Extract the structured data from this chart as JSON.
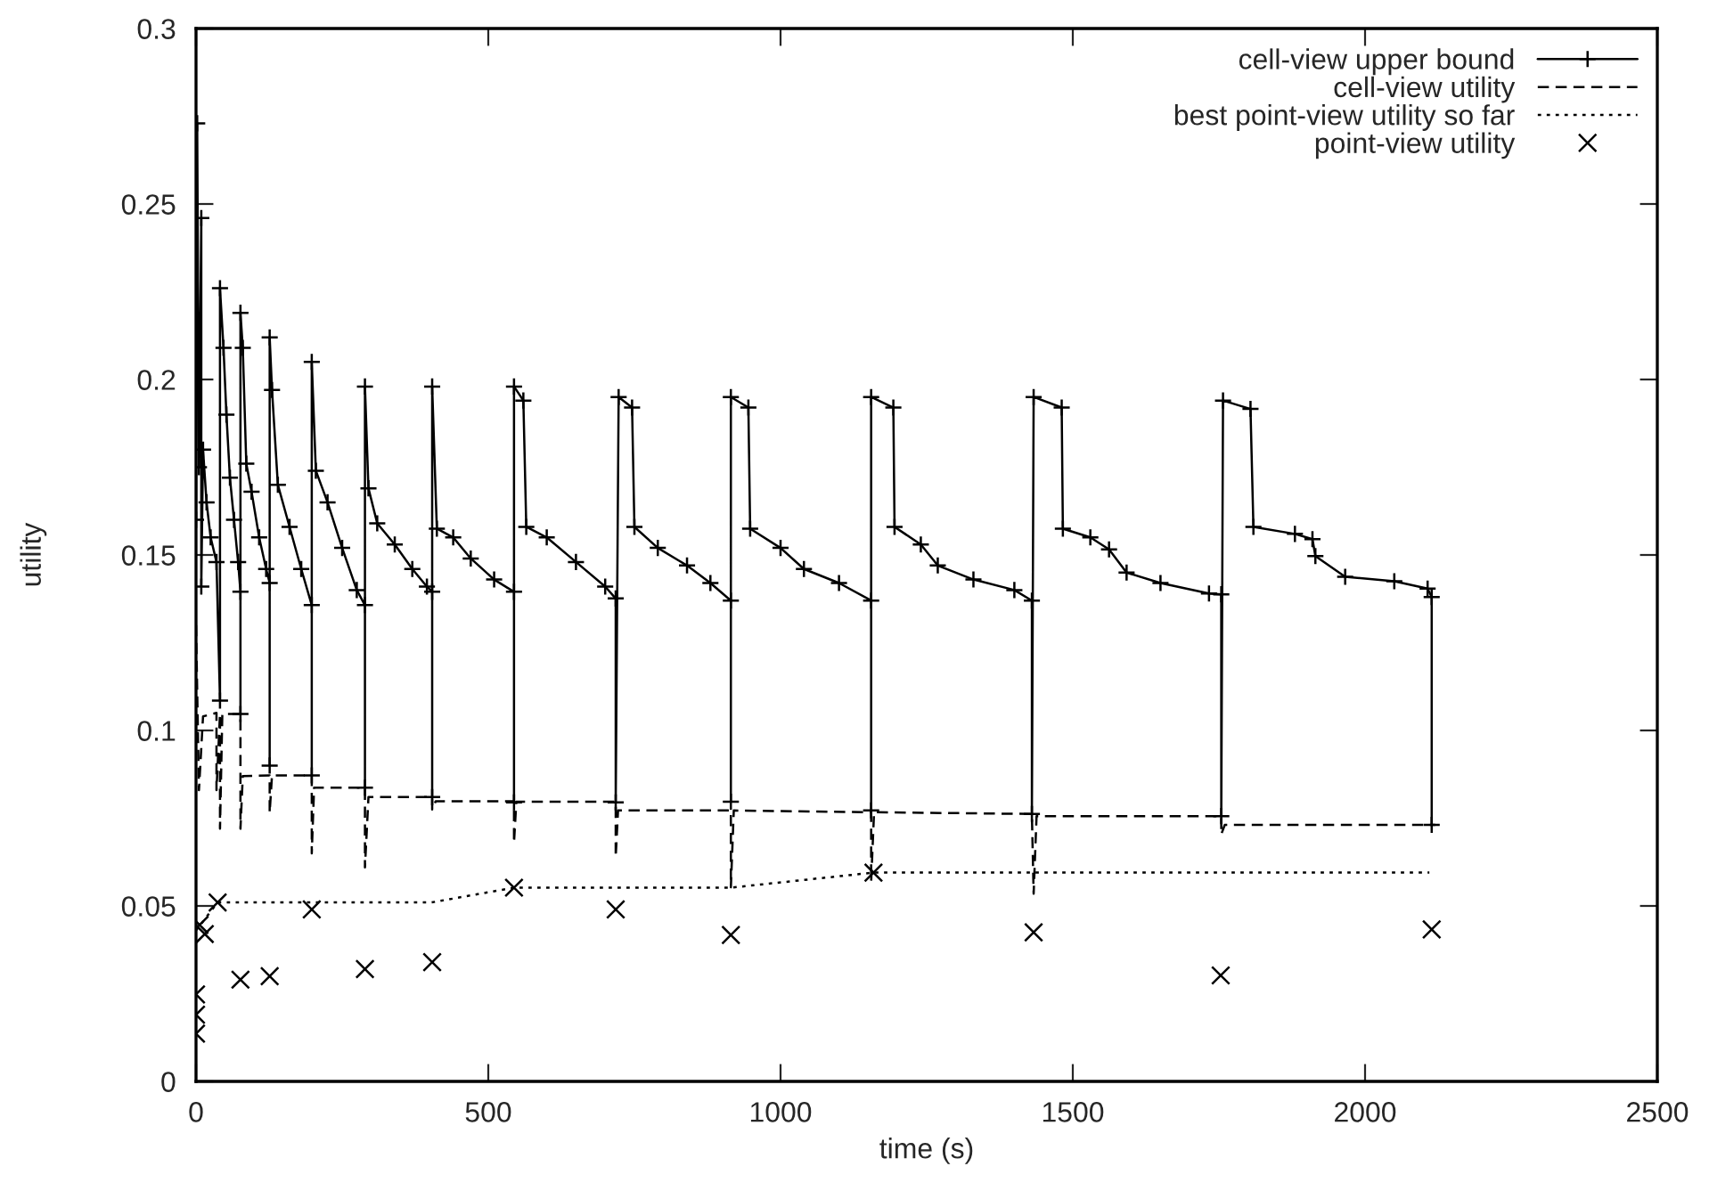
{
  "chart_data": {
    "type": "line",
    "xlabel": "time (s)",
    "ylabel": "utility",
    "xlim": [
      0,
      2500
    ],
    "ylim": [
      0,
      0.3
    ],
    "xticks": [
      0,
      500,
      1000,
      1500,
      2000,
      2500
    ],
    "yticks": [
      0,
      0.05,
      0.1,
      0.15,
      0.2,
      0.25,
      0.3
    ],
    "grid": false,
    "legend": "top right",
    "series": [
      {
        "name": "cell-view upper bound",
        "color": "#000000",
        "marker": "cross",
        "line_style": "solid",
        "x": [
          0,
          2,
          5,
          9,
          9,
          12,
          18,
          25,
          35,
          41,
          41,
          47,
          52,
          58,
          65,
          72,
          76,
          76,
          76,
          80,
          86,
          95,
          108,
          120,
          126,
          126,
          126,
          130,
          140,
          160,
          180,
          198,
          198,
          198,
          205,
          225,
          250,
          275,
          289,
          289,
          289,
          295,
          310,
          340,
          370,
          395,
          404,
          404,
          404,
          412,
          440,
          470,
          510,
          544,
          544,
          544,
          560,
          565,
          600,
          650,
          700,
          718,
          718,
          723,
          746,
          750,
          790,
          840,
          880,
          915,
          915,
          915,
          945,
          948,
          1000,
          1040,
          1100,
          1155,
          1155,
          1155,
          1193,
          1195,
          1240,
          1269,
          1330,
          1400,
          1430,
          1430,
          1433,
          1481,
          1483,
          1530,
          1562,
          1592,
          1650,
          1733,
          1754,
          1754,
          1757,
          1804,
          1809,
          1880,
          1910,
          1915,
          1966,
          2050,
          2107,
          2114,
          2114
        ],
        "values": [
          0.16,
          0.273,
          0.175,
          0.246,
          0.141,
          0.18,
          0.165,
          0.155,
          0.148,
          0.1085,
          0.226,
          0.209,
          0.19,
          0.172,
          0.16,
          0.148,
          0.1395,
          0.1047,
          0.219,
          0.209,
          0.176,
          0.168,
          0.155,
          0.146,
          0.142,
          0.09,
          0.212,
          0.197,
          0.17,
          0.158,
          0.146,
          0.1357,
          0.0872,
          0.205,
          0.174,
          0.165,
          0.152,
          0.14,
          0.1357,
          0.0837,
          0.198,
          0.169,
          0.159,
          0.153,
          0.146,
          0.141,
          0.1395,
          0.081,
          0.198,
          0.1575,
          0.155,
          0.149,
          0.143,
          0.1395,
          0.0795,
          0.198,
          0.194,
          0.158,
          0.155,
          0.148,
          0.141,
          0.1376,
          0.0795,
          0.195,
          0.192,
          0.158,
          0.152,
          0.147,
          0.142,
          0.137,
          0.0797,
          0.195,
          0.192,
          0.1575,
          0.152,
          0.146,
          0.142,
          0.137,
          0.0772,
          0.195,
          0.192,
          0.158,
          0.153,
          0.147,
          0.143,
          0.14,
          0.137,
          0.0762,
          0.195,
          0.192,
          0.1575,
          0.155,
          0.1516,
          0.145,
          0.142,
          0.139,
          0.1388,
          0.0756,
          0.194,
          0.1916,
          0.158,
          0.156,
          0.1545,
          0.1497,
          0.1438,
          0.1425,
          0.1404,
          0.138,
          0.0731
        ]
      },
      {
        "name": "cell-view utility",
        "color": "#000000",
        "marker": "none",
        "line_style": "dashed",
        "x": [
          0,
          5,
          12,
          35,
          35,
          41,
          41,
          45,
          76,
          76,
          80,
          126,
          126,
          130,
          198,
          198,
          202,
          289,
          289,
          295,
          404,
          404,
          410,
          544,
          544,
          548,
          718,
          718,
          722,
          915,
          915,
          920,
          1155,
          1155,
          1160,
          1430,
          1433,
          1438,
          1754,
          1754,
          1760,
          2120
        ],
        "values": [
          0.13,
          0.083,
          0.104,
          0.105,
          0.083,
          0.1047,
          0.072,
          0.1047,
          0.1047,
          0.072,
          0.087,
          0.0872,
          0.0766,
          0.0872,
          0.0872,
          0.065,
          0.0837,
          0.0837,
          0.061,
          0.081,
          0.081,
          0.0775,
          0.0798,
          0.0798,
          0.068,
          0.0797,
          0.0797,
          0.064,
          0.0772,
          0.0772,
          0.0553,
          0.0772,
          0.0767,
          0.057,
          0.0767,
          0.0762,
          0.0535,
          0.0756,
          0.0756,
          0.0704,
          0.0731,
          0.0731
        ]
      },
      {
        "name": "best point-view utility so far",
        "color": "#000000",
        "marker": "none",
        "line_style": "dotted",
        "x": [
          0,
          37,
          403,
          544,
          915,
          1159,
          2110
        ],
        "values": [
          0.043,
          0.051,
          0.051,
          0.0552,
          0.0552,
          0.0595,
          0.0595
        ]
      },
      {
        "name": "point-view utility",
        "type": "scatter",
        "color": "#000000",
        "marker": "cross",
        "x": [
          0,
          0,
          0,
          6,
          15,
          37,
          76,
          126,
          198,
          289,
          404,
          544,
          718,
          915,
          1159,
          1433,
          1753,
          2114
        ],
        "values": [
          0.0136,
          0.019,
          0.0248,
          0.0446,
          0.042,
          0.051,
          0.029,
          0.03,
          0.049,
          0.032,
          0.034,
          0.0552,
          0.049,
          0.0417,
          0.0595,
          0.0425,
          0.0302,
          0.0433
        ]
      }
    ]
  }
}
